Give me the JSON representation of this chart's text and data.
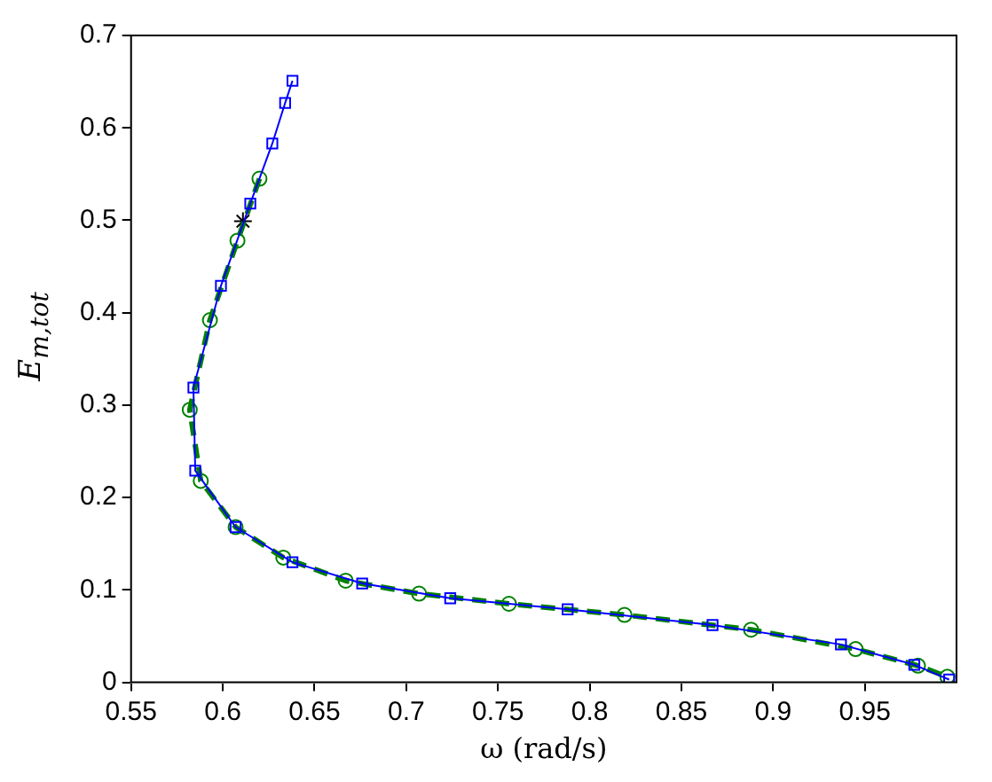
{
  "chart_data": {
    "type": "line",
    "xlabel": "ω (rad/s)",
    "ylabel": "E$_{m,tot}$",
    "xlim": [
      0.55,
      1.0
    ],
    "xticks": [
      0.55,
      0.6,
      0.65,
      0.7,
      0.75,
      0.8,
      0.85,
      0.9,
      0.95
    ],
    "ylim": [
      0,
      0.7
    ],
    "yticks": [
      0,
      0.1,
      0.2,
      0.3,
      0.4,
      0.5,
      0.6,
      0.7
    ],
    "grid": false,
    "legend": false,
    "series": [
      {
        "type": "line",
        "color": "#0000ff",
        "marker": "square",
        "line_style": "solid",
        "x": [
          0.638,
          0.634,
          0.627,
          0.615,
          0.599,
          0.584,
          0.585,
          0.607,
          0.638,
          0.676,
          0.724,
          0.788,
          0.867,
          0.937,
          0.977,
          0.996
        ],
        "values": [
          0.651,
          0.627,
          0.583,
          0.518,
          0.429,
          0.319,
          0.229,
          0.168,
          0.13,
          0.107,
          0.091,
          0.079,
          0.062,
          0.041,
          0.019,
          0.003
        ]
      },
      {
        "type": "line",
        "color": "#008000",
        "marker": "circle",
        "line_style": "dashed",
        "x": [
          0.62,
          0.608,
          0.593,
          0.582,
          0.588,
          0.607,
          0.633,
          0.667,
          0.707,
          0.756,
          0.819,
          0.888,
          0.945,
          0.979,
          0.995
        ],
        "values": [
          0.545,
          0.478,
          0.392,
          0.295,
          0.218,
          0.168,
          0.135,
          0.11,
          0.096,
          0.085,
          0.073,
          0.057,
          0.036,
          0.018,
          0.006
        ]
      },
      {
        "type": "scatter",
        "color": "#000000",
        "marker": "cross",
        "x": [
          0.611
        ],
        "values": [
          0.499
        ]
      }
    ]
  }
}
